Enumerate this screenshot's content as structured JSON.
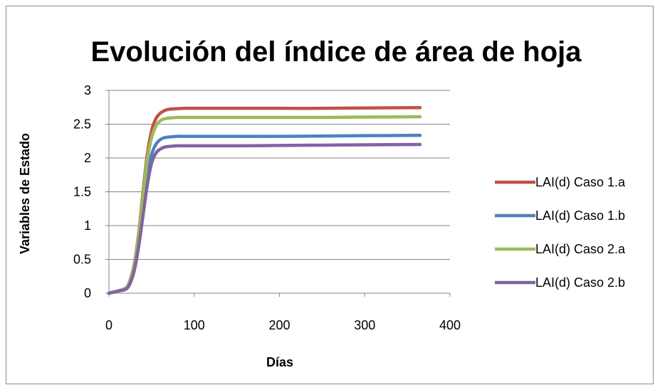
{
  "chart_data": {
    "type": "line",
    "title": "Evolución del índice de área de hoja",
    "xlabel": "Días",
    "ylabel": "Variables de Estado",
    "xlim": [
      0,
      400
    ],
    "ylim": [
      0,
      3
    ],
    "x_ticks": [
      "0",
      "100",
      "200",
      "300",
      "400"
    ],
    "y_ticks": [
      "0",
      "0.5",
      "1",
      "1.5",
      "2",
      "2.5",
      "3"
    ],
    "grid": "horizontal",
    "legend_position": "right",
    "series": [
      {
        "name": "LAI(d) Caso 1.a",
        "color": "#c0504d",
        "x": [
          0,
          10,
          20,
          25,
          30,
          35,
          40,
          45,
          50,
          55,
          60,
          65,
          70,
          80,
          90,
          100,
          120,
          150,
          200,
          250,
          300,
          365
        ],
        "y": [
          0.0,
          0.03,
          0.08,
          0.2,
          0.45,
          0.9,
          1.5,
          2.05,
          2.4,
          2.58,
          2.66,
          2.7,
          2.72,
          2.73,
          2.735,
          2.735,
          2.735,
          2.735,
          2.735,
          2.735,
          2.74,
          2.745
        ]
      },
      {
        "name": "LAI(d) Caso 1.b",
        "color": "#4f81bd",
        "x": [
          0,
          10,
          20,
          25,
          30,
          35,
          40,
          45,
          50,
          55,
          60,
          65,
          70,
          80,
          90,
          100,
          120,
          150,
          200,
          250,
          300,
          365
        ],
        "y": [
          0.0,
          0.03,
          0.07,
          0.18,
          0.4,
          0.8,
          1.3,
          1.75,
          2.05,
          2.2,
          2.27,
          2.3,
          2.31,
          2.32,
          2.32,
          2.32,
          2.32,
          2.32,
          2.32,
          2.325,
          2.33,
          2.335
        ]
      },
      {
        "name": "LAI(d) Caso 2.a",
        "color": "#9bbb59",
        "x": [
          0,
          10,
          20,
          25,
          30,
          35,
          40,
          45,
          50,
          55,
          60,
          65,
          70,
          80,
          90,
          100,
          120,
          150,
          200,
          250,
          300,
          365
        ],
        "y": [
          0.0,
          0.03,
          0.08,
          0.19,
          0.43,
          0.87,
          1.45,
          1.98,
          2.3,
          2.47,
          2.55,
          2.58,
          2.59,
          2.6,
          2.6,
          2.6,
          2.6,
          2.6,
          2.6,
          2.6,
          2.605,
          2.61
        ]
      },
      {
        "name": "LAI(d) Caso 2.b",
        "color": "#8064a2",
        "x": [
          0,
          10,
          20,
          25,
          30,
          35,
          40,
          45,
          50,
          55,
          60,
          65,
          70,
          80,
          90,
          100,
          120,
          150,
          200,
          250,
          300,
          365
        ],
        "y": [
          0.0,
          0.03,
          0.06,
          0.15,
          0.35,
          0.7,
          1.15,
          1.6,
          1.92,
          2.07,
          2.13,
          2.16,
          2.17,
          2.18,
          2.18,
          2.18,
          2.18,
          2.18,
          2.185,
          2.19,
          2.195,
          2.2
        ]
      }
    ]
  }
}
